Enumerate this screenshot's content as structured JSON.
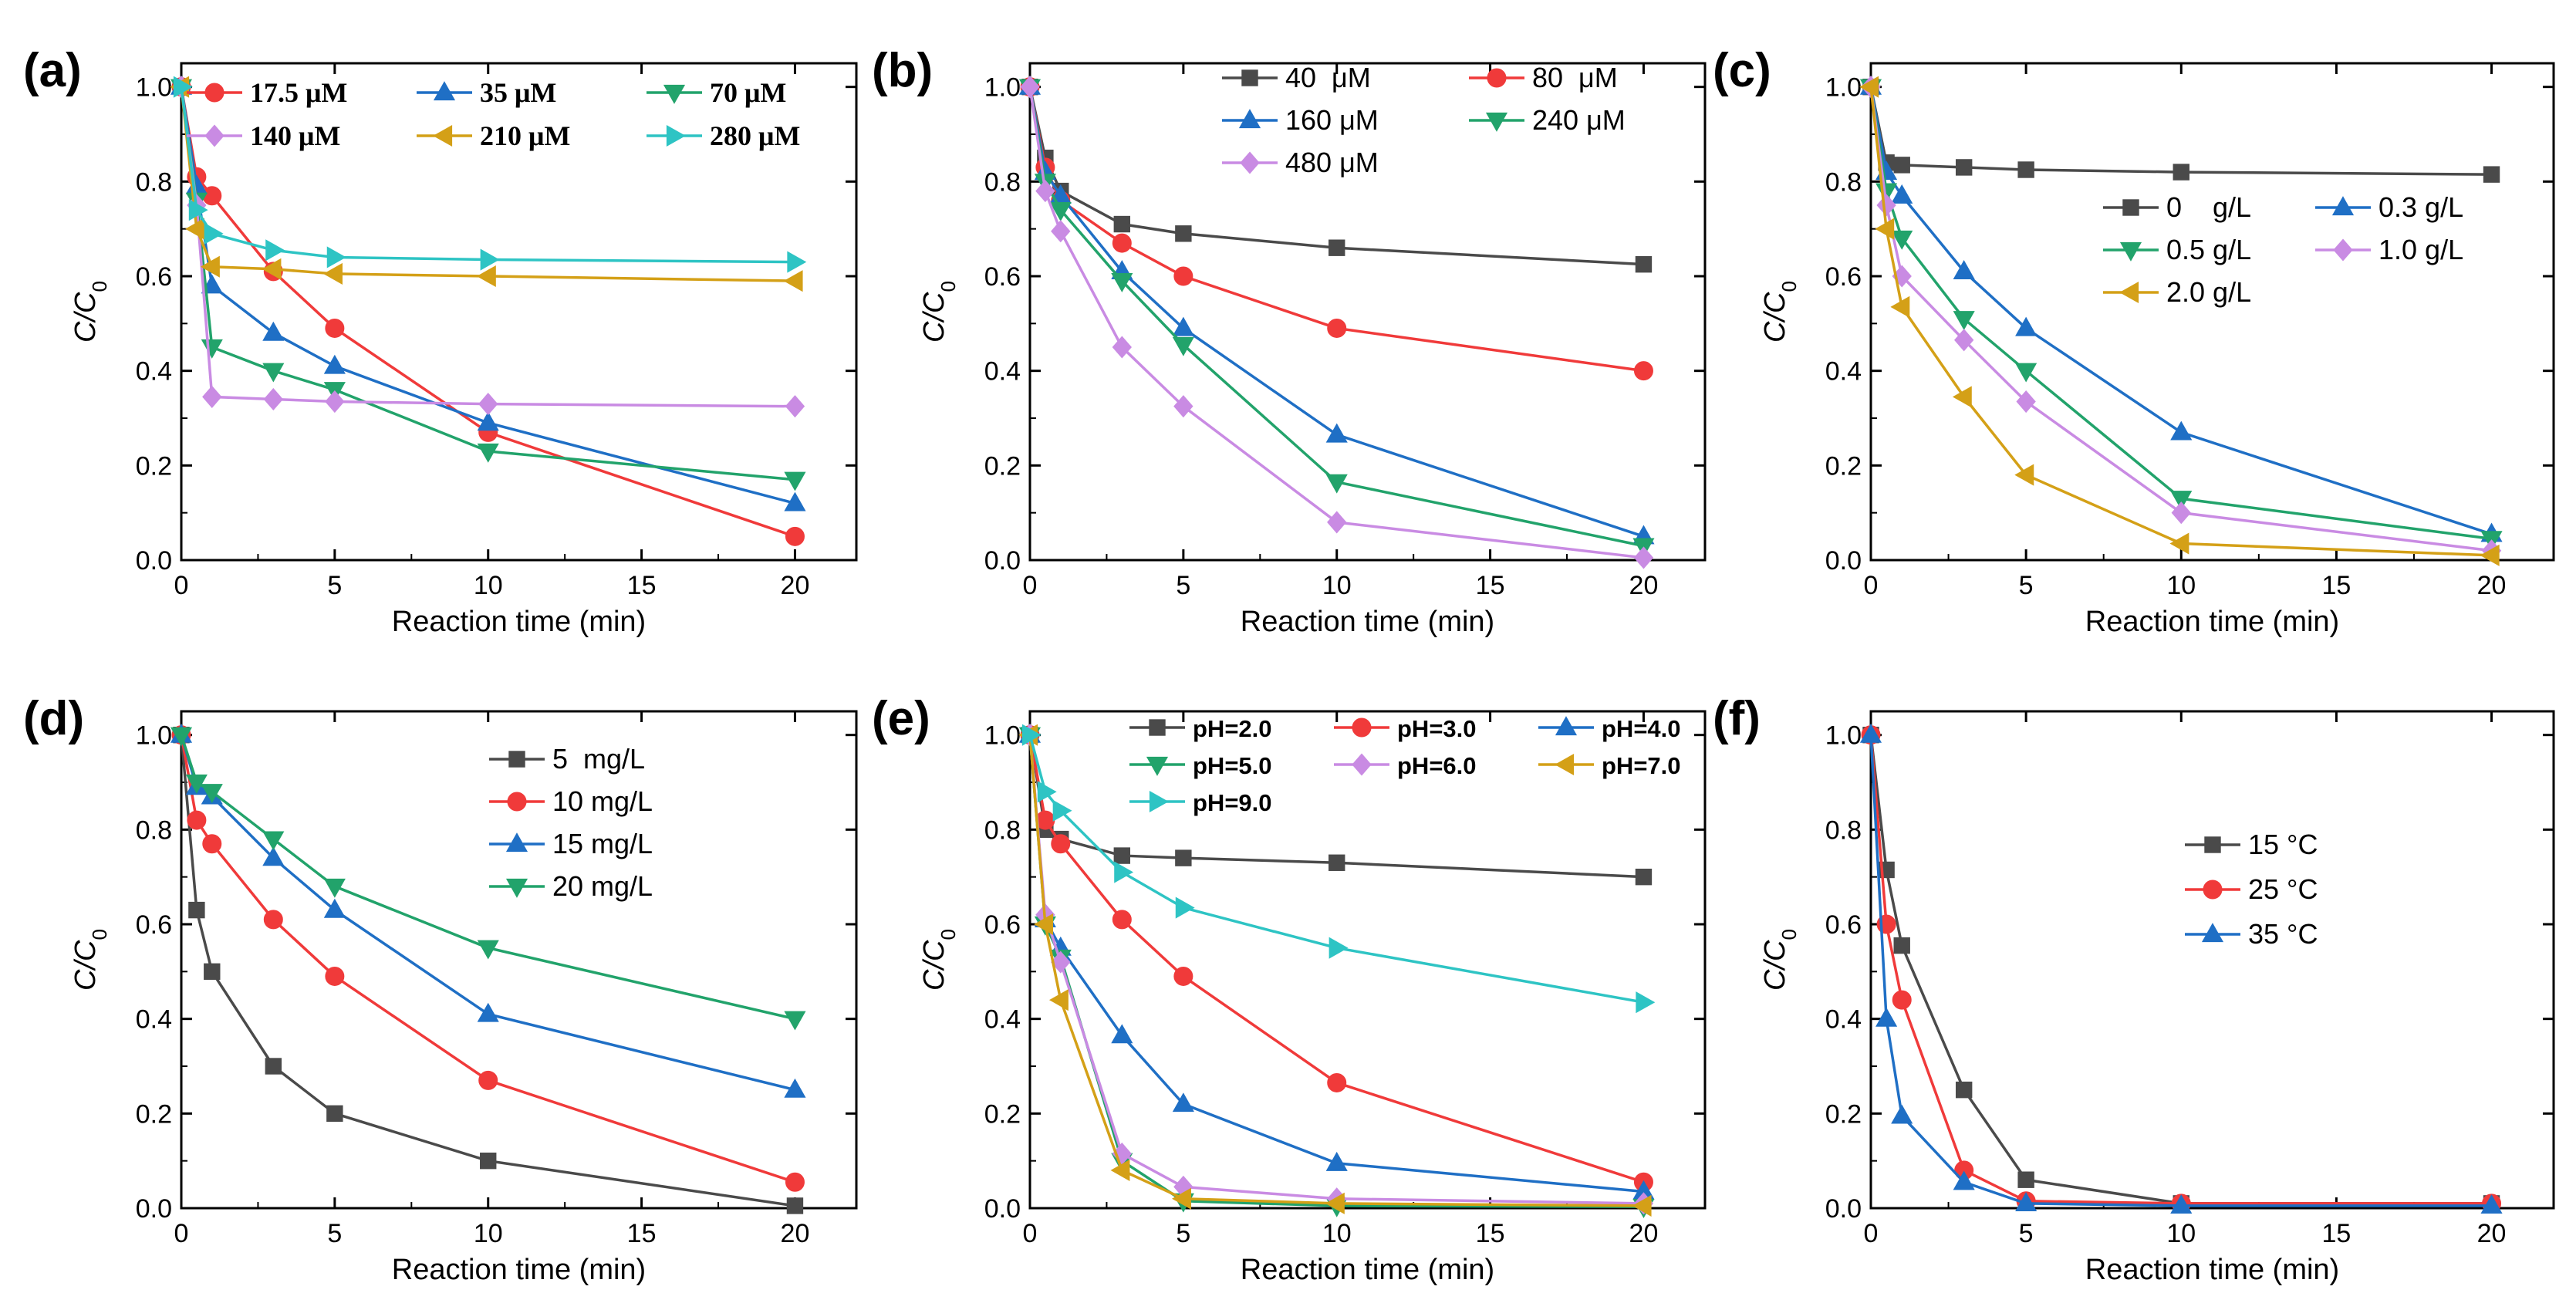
{
  "chart_data": [
    {
      "panel": "(a)",
      "type": "line",
      "xlabel": "Reaction time (min)",
      "ylabel": "C/C0",
      "xlim": [
        0,
        22
      ],
      "ylim": [
        0,
        1.05
      ],
      "xticks": [
        "0",
        "5",
        "10",
        "15",
        "20"
      ],
      "yticks": [
        "0.0",
        "0.2",
        "0.4",
        "0.6",
        "0.8",
        "1.0"
      ],
      "legend_style": "bold-serif",
      "legend_columns": 3,
      "legend_position": "top",
      "series": [
        {
          "name": "17.5 μM",
          "color": "#f03a3a",
          "marker": "circle",
          "x": [
            0,
            0.5,
            1,
            3,
            5,
            10,
            20
          ],
          "y": [
            1.0,
            0.81,
            0.77,
            0.61,
            0.49,
            0.27,
            0.05
          ]
        },
        {
          "name": "35 μM",
          "color": "#1f6fc5",
          "marker": "triangle-up",
          "x": [
            0,
            0.5,
            1,
            3,
            5,
            10,
            20
          ],
          "y": [
            1.0,
            0.79,
            0.58,
            0.48,
            0.41,
            0.29,
            0.12
          ]
        },
        {
          "name": "70 μM",
          "color": "#22a36b",
          "marker": "triangle-down",
          "x": [
            0,
            0.5,
            1,
            3,
            5,
            10,
            20
          ],
          "y": [
            1.0,
            0.76,
            0.45,
            0.4,
            0.36,
            0.23,
            0.17
          ]
        },
        {
          "name": "140 μM",
          "color": "#c98be3",
          "marker": "diamond",
          "x": [
            0,
            0.5,
            1,
            3,
            5,
            10,
            20
          ],
          "y": [
            1.0,
            0.75,
            0.345,
            0.34,
            0.335,
            0.33,
            0.325
          ]
        },
        {
          "name": "210 μM",
          "color": "#d4a017",
          "marker": "triangle-left",
          "x": [
            0,
            0.5,
            1,
            3,
            5,
            10,
            20
          ],
          "y": [
            1.0,
            0.7,
            0.62,
            0.615,
            0.605,
            0.6,
            0.59
          ]
        },
        {
          "name": "280 μM",
          "color": "#2ec4c4",
          "marker": "triangle-right",
          "x": [
            0,
            0.5,
            1,
            3,
            5,
            10,
            20
          ],
          "y": [
            1.0,
            0.74,
            0.69,
            0.655,
            0.64,
            0.635,
            0.63
          ]
        }
      ]
    },
    {
      "panel": "(b)",
      "type": "line",
      "xlabel": "Reaction time (min)",
      "ylabel": "C/C0",
      "xlim": [
        0,
        22
      ],
      "ylim": [
        0,
        1.05
      ],
      "xticks": [
        "0",
        "5",
        "10",
        "15",
        "20"
      ],
      "yticks": [
        "0.0",
        "0.2",
        "0.4",
        "0.6",
        "0.8",
        "1.0"
      ],
      "legend_style": "normal",
      "legend_columns": 2,
      "legend_position": "top-right",
      "series": [
        {
          "name": "40  μM",
          "color": "#4a4a4a",
          "marker": "square",
          "x": [
            0,
            0.5,
            1,
            3,
            5,
            10,
            20
          ],
          "y": [
            1.0,
            0.85,
            0.78,
            0.71,
            0.69,
            0.66,
            0.625
          ]
        },
        {
          "name": "80  μM",
          "color": "#f03a3a",
          "marker": "circle",
          "x": [
            0,
            0.5,
            1,
            3,
            5,
            10,
            20
          ],
          "y": [
            1.0,
            0.83,
            0.76,
            0.67,
            0.6,
            0.49,
            0.4
          ]
        },
        {
          "name": "160 μM",
          "color": "#1f6fc5",
          "marker": "triangle-up",
          "x": [
            0,
            0.5,
            1,
            3,
            5,
            10,
            20
          ],
          "y": [
            1.0,
            0.82,
            0.77,
            0.61,
            0.49,
            0.265,
            0.05
          ]
        },
        {
          "name": "240 μM",
          "color": "#22a36b",
          "marker": "triangle-down",
          "x": [
            0,
            0.5,
            1,
            3,
            5,
            10,
            20
          ],
          "y": [
            1.0,
            0.8,
            0.74,
            0.59,
            0.455,
            0.165,
            0.03
          ]
        },
        {
          "name": "480 μM",
          "color": "#c98be3",
          "marker": "diamond",
          "x": [
            0,
            0.5,
            1,
            3,
            5,
            10,
            20
          ],
          "y": [
            1.0,
            0.78,
            0.695,
            0.45,
            0.325,
            0.08,
            0.005
          ]
        }
      ]
    },
    {
      "panel": "(c)",
      "type": "line",
      "xlabel": "Reaction time (min)",
      "ylabel": "C/C0",
      "xlim": [
        0,
        22
      ],
      "ylim": [
        0,
        1.05
      ],
      "xticks": [
        "0",
        "5",
        "10",
        "15",
        "20"
      ],
      "yticks": [
        "0.0",
        "0.2",
        "0.4",
        "0.6",
        "0.8",
        "1.0"
      ],
      "legend_style": "normal",
      "legend_columns": 2,
      "legend_position": "middle-right",
      "series": [
        {
          "name": "0    g/L",
          "color": "#4a4a4a",
          "marker": "square",
          "x": [
            0,
            0.5,
            1,
            3,
            5,
            10,
            20
          ],
          "y": [
            1.0,
            0.84,
            0.835,
            0.83,
            0.825,
            0.82,
            0.815
          ]
        },
        {
          "name": "0.3 g/L",
          "color": "#1f6fc5",
          "marker": "triangle-up",
          "x": [
            0,
            0.5,
            1,
            3,
            5,
            10,
            20
          ],
          "y": [
            1.0,
            0.82,
            0.77,
            0.61,
            0.49,
            0.27,
            0.055
          ]
        },
        {
          "name": "0.5 g/L",
          "color": "#22a36b",
          "marker": "triangle-down",
          "x": [
            0,
            0.5,
            1,
            3,
            5,
            10,
            20
          ],
          "y": [
            1.0,
            0.78,
            0.68,
            0.51,
            0.4,
            0.13,
            0.045
          ]
        },
        {
          "name": "1.0 g/L",
          "color": "#c98be3",
          "marker": "diamond",
          "x": [
            0,
            0.5,
            1,
            3,
            5,
            10,
            20
          ],
          "y": [
            1.0,
            0.75,
            0.6,
            0.465,
            0.335,
            0.1,
            0.02
          ]
        },
        {
          "name": "2.0 g/L",
          "color": "#d4a017",
          "marker": "triangle-left",
          "x": [
            0,
            0.5,
            1,
            3,
            5,
            10,
            20
          ],
          "y": [
            1.0,
            0.7,
            0.535,
            0.345,
            0.18,
            0.035,
            0.01
          ]
        }
      ]
    },
    {
      "panel": "(d)",
      "type": "line",
      "xlabel": "Reaction time (min)",
      "ylabel": "C/C0",
      "xlim": [
        0,
        22
      ],
      "ylim": [
        0,
        1.05
      ],
      "xticks": [
        "0",
        "5",
        "10",
        "15",
        "20"
      ],
      "yticks": [
        "0.0",
        "0.2",
        "0.4",
        "0.6",
        "0.8",
        "1.0"
      ],
      "legend_style": "normal",
      "legend_columns": 1,
      "legend_position": "top-right",
      "series": [
        {
          "name": "5  mg/L",
          "color": "#4a4a4a",
          "marker": "square",
          "x": [
            0,
            0.5,
            1,
            3,
            5,
            10,
            20
          ],
          "y": [
            1.0,
            0.63,
            0.5,
            0.3,
            0.2,
            0.1,
            0.005
          ]
        },
        {
          "name": "10 mg/L",
          "color": "#f03a3a",
          "marker": "circle",
          "x": [
            0,
            0.5,
            1,
            3,
            5,
            10,
            20
          ],
          "y": [
            1.0,
            0.82,
            0.77,
            0.61,
            0.49,
            0.27,
            0.055
          ]
        },
        {
          "name": "15 mg/L",
          "color": "#1f6fc5",
          "marker": "triangle-up",
          "x": [
            0,
            0.5,
            1,
            3,
            5,
            10,
            20
          ],
          "y": [
            1.0,
            0.89,
            0.87,
            0.74,
            0.63,
            0.41,
            0.25
          ]
        },
        {
          "name": "20 mg/L",
          "color": "#22a36b",
          "marker": "triangle-down",
          "x": [
            0,
            0.5,
            1,
            3,
            5,
            10,
            20
          ],
          "y": [
            1.0,
            0.9,
            0.88,
            0.78,
            0.68,
            0.55,
            0.4
          ]
        }
      ]
    },
    {
      "panel": "(e)",
      "type": "line",
      "xlabel": "Reaction time (min)",
      "ylabel": "C/C0",
      "xlim": [
        0,
        22
      ],
      "ylim": [
        0,
        1.05
      ],
      "xticks": [
        "0",
        "5",
        "10",
        "15",
        "20"
      ],
      "yticks": [
        "0.0",
        "0.2",
        "0.4",
        "0.6",
        "0.8",
        "1.0"
      ],
      "legend_style": "small-bold",
      "legend_columns": 3,
      "legend_position": "top",
      "series": [
        {
          "name": "pH=2.0",
          "color": "#4a4a4a",
          "marker": "square",
          "x": [
            0,
            0.5,
            1,
            3,
            5,
            10,
            20
          ],
          "y": [
            1.0,
            0.8,
            0.78,
            0.745,
            0.74,
            0.73,
            0.7
          ]
        },
        {
          "name": "pH=3.0",
          "color": "#f03a3a",
          "marker": "circle",
          "x": [
            0,
            0.5,
            1,
            3,
            5,
            10,
            20
          ],
          "y": [
            1.0,
            0.82,
            0.77,
            0.61,
            0.49,
            0.265,
            0.055
          ]
        },
        {
          "name": "pH=4.0",
          "color": "#1f6fc5",
          "marker": "triangle-up",
          "x": [
            0,
            0.5,
            1,
            3,
            5,
            10,
            20
          ],
          "y": [
            1.0,
            0.61,
            0.55,
            0.365,
            0.22,
            0.095,
            0.035
          ]
        },
        {
          "name": "pH=5.0",
          "color": "#22a36b",
          "marker": "triangle-down",
          "x": [
            0,
            0.5,
            1,
            3,
            5,
            10,
            20
          ],
          "y": [
            1.0,
            0.6,
            0.53,
            0.1,
            0.015,
            0.005,
            0.003
          ]
        },
        {
          "name": "pH=6.0",
          "color": "#c98be3",
          "marker": "diamond",
          "x": [
            0,
            0.5,
            1,
            3,
            5,
            10,
            20
          ],
          "y": [
            1.0,
            0.62,
            0.52,
            0.115,
            0.045,
            0.02,
            0.01
          ]
        },
        {
          "name": "pH=7.0",
          "color": "#d4a017",
          "marker": "triangle-left",
          "x": [
            0,
            0.5,
            1,
            3,
            5,
            10,
            20
          ],
          "y": [
            1.0,
            0.6,
            0.44,
            0.08,
            0.02,
            0.01,
            0.005
          ]
        },
        {
          "name": "pH=9.0",
          "color": "#2ec4c4",
          "marker": "triangle-right",
          "x": [
            0,
            0.5,
            1,
            3,
            5,
            10,
            20
          ],
          "y": [
            1.0,
            0.88,
            0.84,
            0.71,
            0.635,
            0.55,
            0.435
          ]
        }
      ]
    },
    {
      "panel": "(f)",
      "type": "line",
      "xlabel": "Reaction time (min)",
      "ylabel": "C/C0",
      "xlim": [
        0,
        22
      ],
      "ylim": [
        0,
        1.05
      ],
      "xticks": [
        "0",
        "5",
        "10",
        "15",
        "20"
      ],
      "yticks": [
        "0.0",
        "0.2",
        "0.4",
        "0.6",
        "0.8",
        "1.0"
      ],
      "legend_style": "normal",
      "legend_columns": 1,
      "legend_position": "middle-right",
      "series": [
        {
          "name": "15 °C",
          "color": "#4a4a4a",
          "marker": "square",
          "x": [
            0,
            0.5,
            1,
            3,
            5,
            10,
            20
          ],
          "y": [
            1.0,
            0.715,
            0.555,
            0.25,
            0.06,
            0.01,
            0.01
          ]
        },
        {
          "name": "25 °C",
          "color": "#f03a3a",
          "marker": "circle",
          "x": [
            0,
            0.5,
            1,
            3,
            5,
            10,
            20
          ],
          "y": [
            1.0,
            0.6,
            0.44,
            0.08,
            0.015,
            0.01,
            0.01
          ]
        },
        {
          "name": "35 °C",
          "color": "#1f6fc5",
          "marker": "triangle-up",
          "x": [
            0,
            0.5,
            1,
            3,
            5,
            10,
            20
          ],
          "y": [
            1.0,
            0.4,
            0.195,
            0.055,
            0.01,
            0.005,
            0.005
          ]
        }
      ]
    }
  ]
}
